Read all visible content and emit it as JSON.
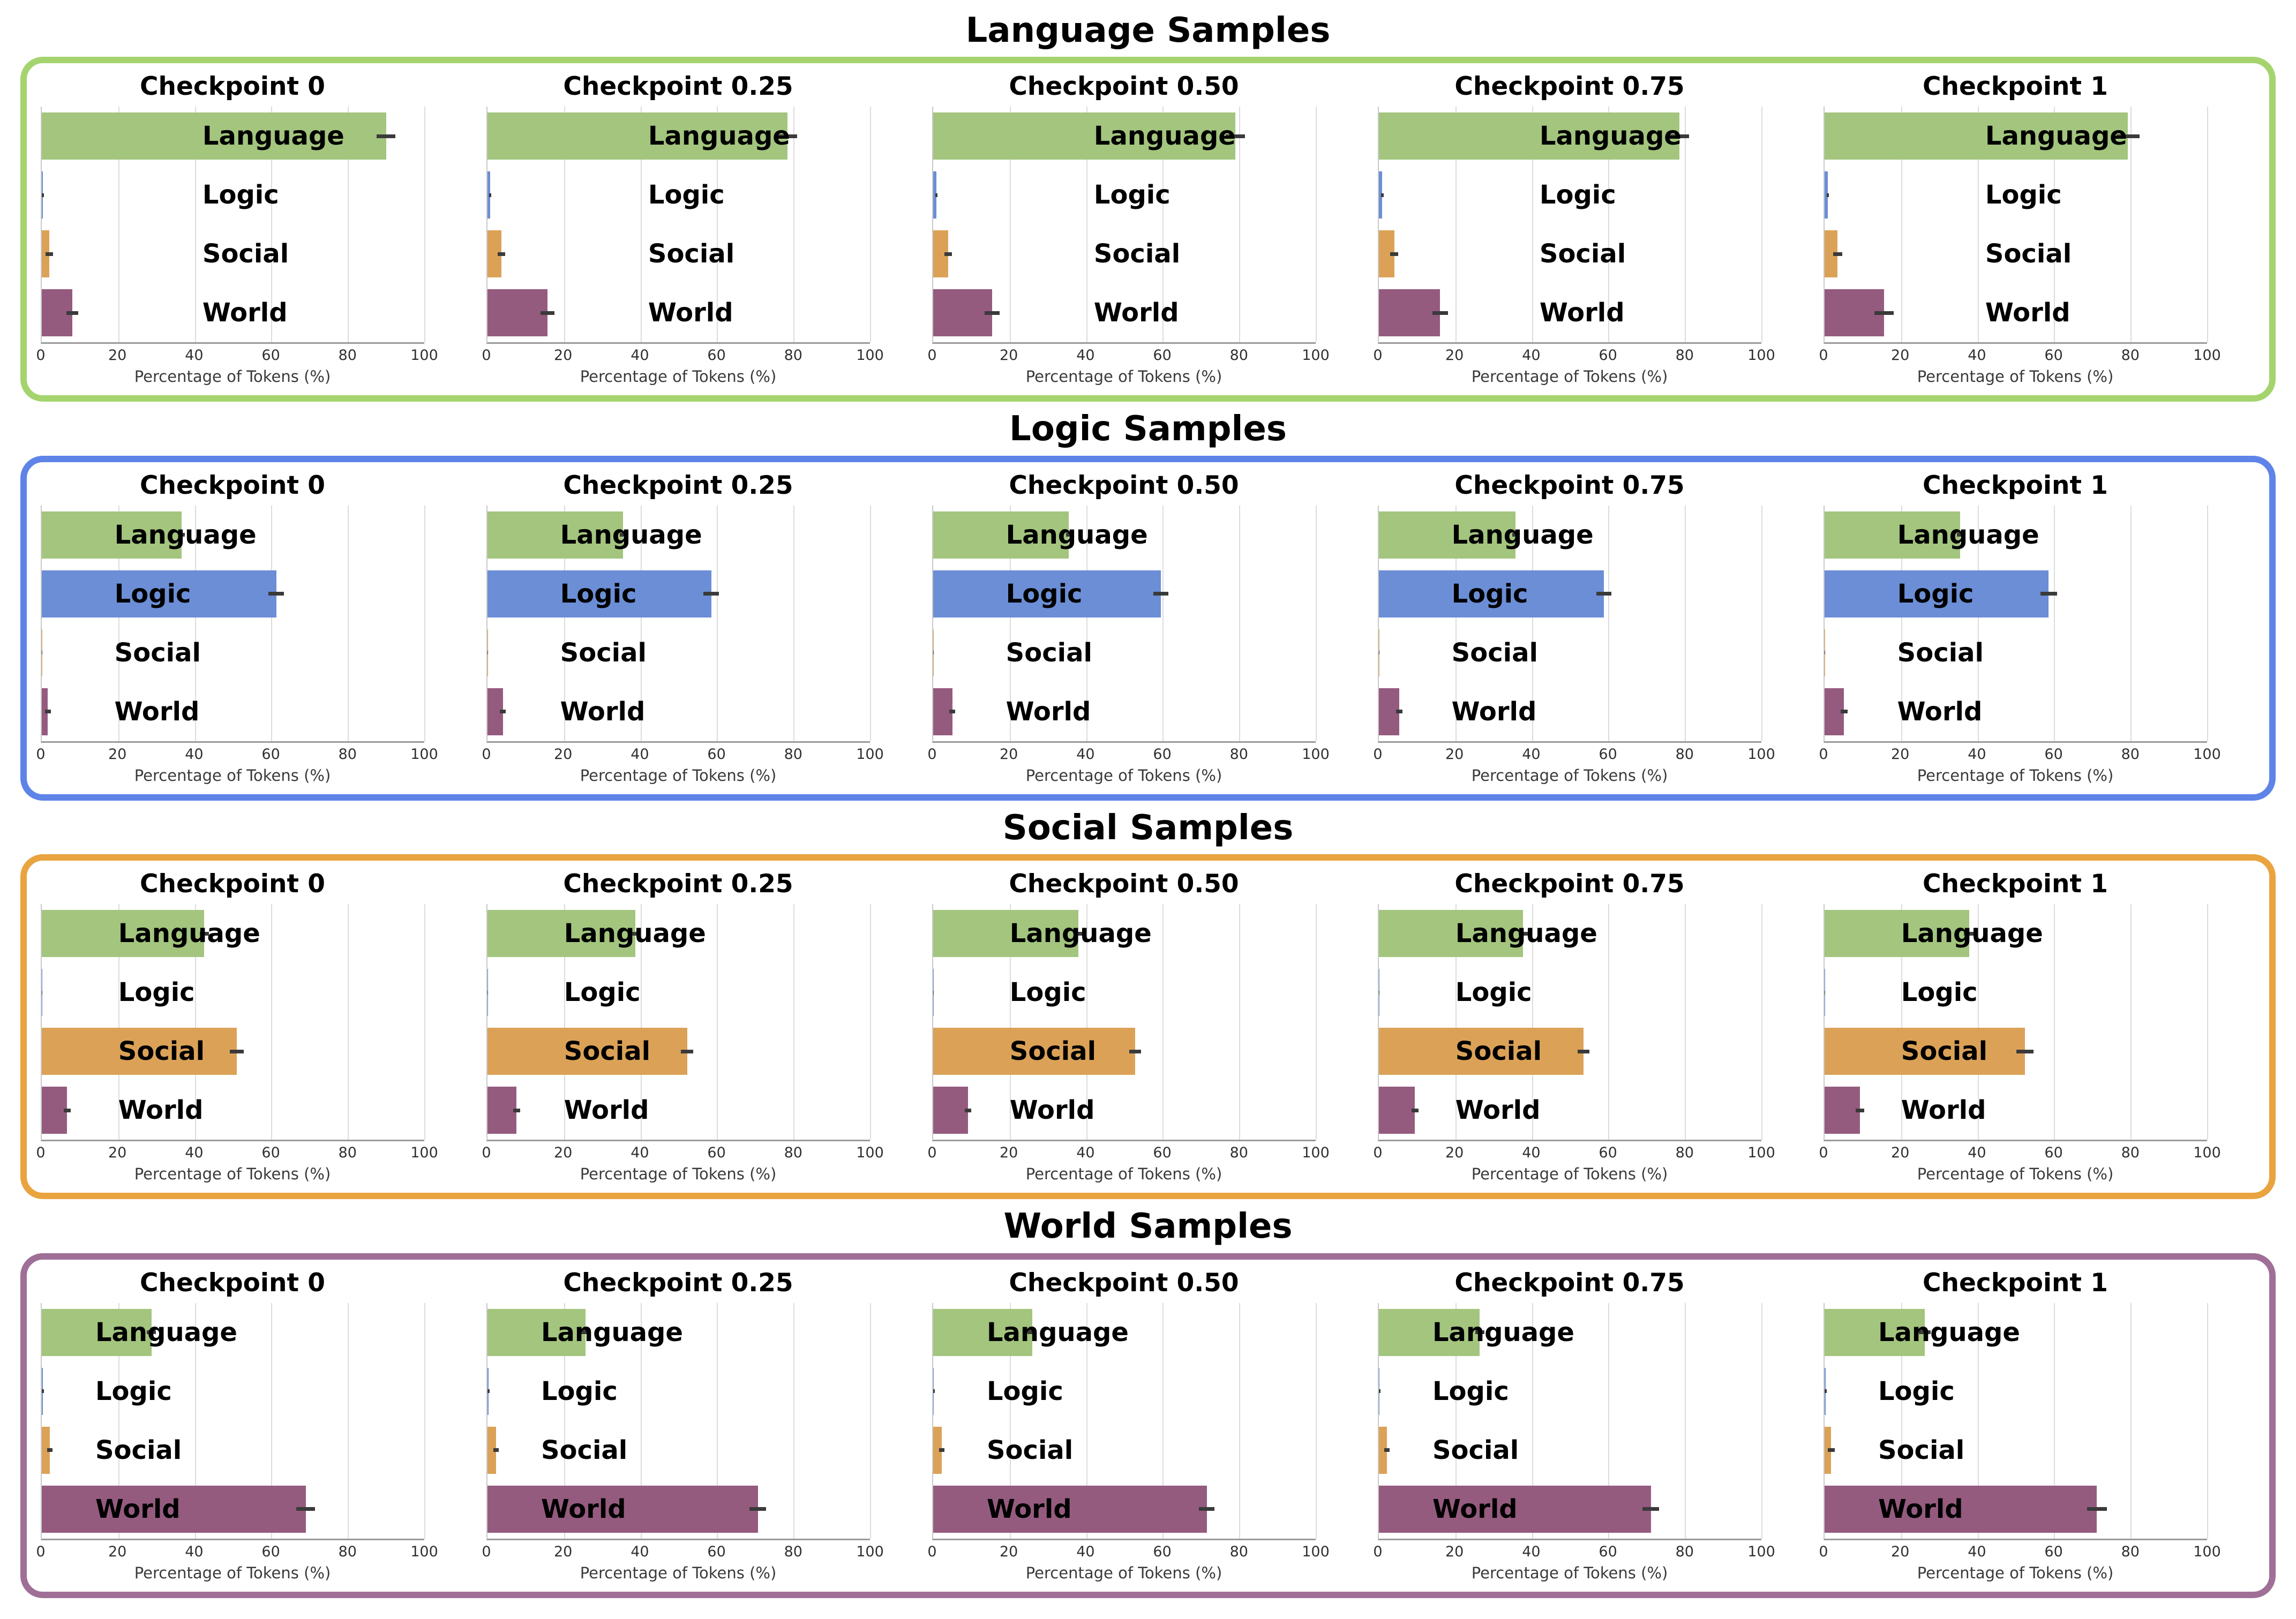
{
  "chart_data": {
    "type": "bar",
    "orientation": "horizontal",
    "categories": [
      "Language",
      "Logic",
      "Social",
      "World"
    ],
    "bar_colors": [
      "#a3c57e",
      "#6b8ed6",
      "#dba257",
      "#955b7f"
    ],
    "xlabel": "Percentage of Tokens (%)",
    "xlim": [
      0,
      100
    ],
    "xticks": [
      0,
      20,
      40,
      60,
      80,
      100
    ],
    "grid": true,
    "error_bar_color": "#3a3a3a",
    "rows": [
      {
        "group_title": "Language Samples",
        "border_color": "#a5d46f",
        "label_x_pct": 42,
        "checkpoints": [
          {
            "label": "Checkpoint 0",
            "values": [
              90.0,
              0.3,
              2.0,
              8.0
            ],
            "errors": [
              2.5,
              0.3,
              1.0,
              1.5
            ]
          },
          {
            "label": "Checkpoint 0.25",
            "values": [
              78.5,
              0.7,
              3.6,
              15.7
            ],
            "errors": [
              2.5,
              0.3,
              1.0,
              1.8
            ]
          },
          {
            "label": "Checkpoint 0.50",
            "values": [
              79.0,
              0.8,
              3.9,
              15.4
            ],
            "errors": [
              2.5,
              0.3,
              1.0,
              2.0
            ]
          },
          {
            "label": "Checkpoint 0.75",
            "values": [
              78.6,
              0.9,
              4.0,
              16.0
            ],
            "errors": [
              2.5,
              0.3,
              1.0,
              2.0
            ]
          },
          {
            "label": "Checkpoint 1",
            "values": [
              79.3,
              0.8,
              3.4,
              15.5
            ],
            "errors": [
              3.0,
              0.3,
              1.2,
              2.5
            ]
          }
        ]
      },
      {
        "group_title": "Logic Samples",
        "border_color": "#5f84e8",
        "label_x_pct": 19,
        "checkpoints": [
          {
            "label": "Checkpoint 0",
            "values": [
              36.6,
              61.3,
              0.1,
              1.6
            ],
            "errors": [
              0.8,
              2.0,
              0.1,
              0.8
            ]
          },
          {
            "label": "Checkpoint 0.25",
            "values": [
              35.4,
              58.5,
              0.1,
              4.0
            ],
            "errors": [
              0.8,
              2.0,
              0.1,
              0.8
            ]
          },
          {
            "label": "Checkpoint 0.50",
            "values": [
              35.5,
              59.5,
              0.1,
              5.0
            ],
            "errors": [
              0.8,
              2.0,
              0.1,
              0.8
            ]
          },
          {
            "label": "Checkpoint 0.75",
            "values": [
              35.7,
              58.8,
              0.1,
              5.3
            ],
            "errors": [
              0.8,
              2.0,
              0.1,
              0.8
            ]
          },
          {
            "label": "Checkpoint 1",
            "values": [
              35.4,
              58.6,
              0.1,
              5.1
            ],
            "errors": [
              0.8,
              2.2,
              0.1,
              0.9
            ]
          }
        ]
      },
      {
        "group_title": "Social Samples",
        "border_color": "#e9a440",
        "label_x_pct": 20,
        "checkpoints": [
          {
            "label": "Checkpoint 0",
            "values": [
              42.5,
              0.1,
              51.0,
              6.6
            ],
            "errors": [
              1.2,
              0.1,
              1.8,
              0.9
            ]
          },
          {
            "label": "Checkpoint 0.25",
            "values": [
              38.6,
              0.1,
              52.2,
              7.6
            ],
            "errors": [
              1.2,
              0.1,
              1.6,
              0.9
            ]
          },
          {
            "label": "Checkpoint 0.50",
            "values": [
              38.0,
              0.1,
              52.8,
              9.1
            ],
            "errors": [
              1.2,
              0.1,
              1.6,
              0.9
            ]
          },
          {
            "label": "Checkpoint 0.75",
            "values": [
              37.7,
              0.1,
              53.5,
              9.4
            ],
            "errors": [
              1.2,
              0.1,
              1.6,
              0.9
            ]
          },
          {
            "label": "Checkpoint 1",
            "values": [
              37.8,
              0.1,
              52.4,
              9.2
            ],
            "errors": [
              1.4,
              0.1,
              2.2,
              1.1
            ]
          }
        ]
      },
      {
        "group_title": "World Samples",
        "border_color": "#9f6f97",
        "label_x_pct": 14,
        "checkpoints": [
          {
            "label": "Checkpoint 0",
            "values": [
              28.7,
              0.3,
              2.1,
              69.0
            ],
            "errors": [
              1.2,
              0.3,
              0.7,
              2.5
            ]
          },
          {
            "label": "Checkpoint 0.25",
            "values": [
              25.7,
              0.3,
              2.3,
              70.7
            ],
            "errors": [
              1.2,
              0.3,
              0.7,
              2.2
            ]
          },
          {
            "label": "Checkpoint 0.50",
            "values": [
              25.9,
              0.2,
              2.2,
              71.5
            ],
            "errors": [
              1.2,
              0.2,
              0.7,
              2.0
            ]
          },
          {
            "label": "Checkpoint 0.75",
            "values": [
              26.4,
              0.2,
              2.1,
              71.1
            ],
            "errors": [
              1.2,
              0.2,
              0.7,
              2.2
            ]
          },
          {
            "label": "Checkpoint 1",
            "values": [
              26.2,
              0.3,
              1.7,
              71.2
            ],
            "errors": [
              1.5,
              0.3,
              0.9,
              2.6
            ]
          }
        ]
      }
    ]
  }
}
